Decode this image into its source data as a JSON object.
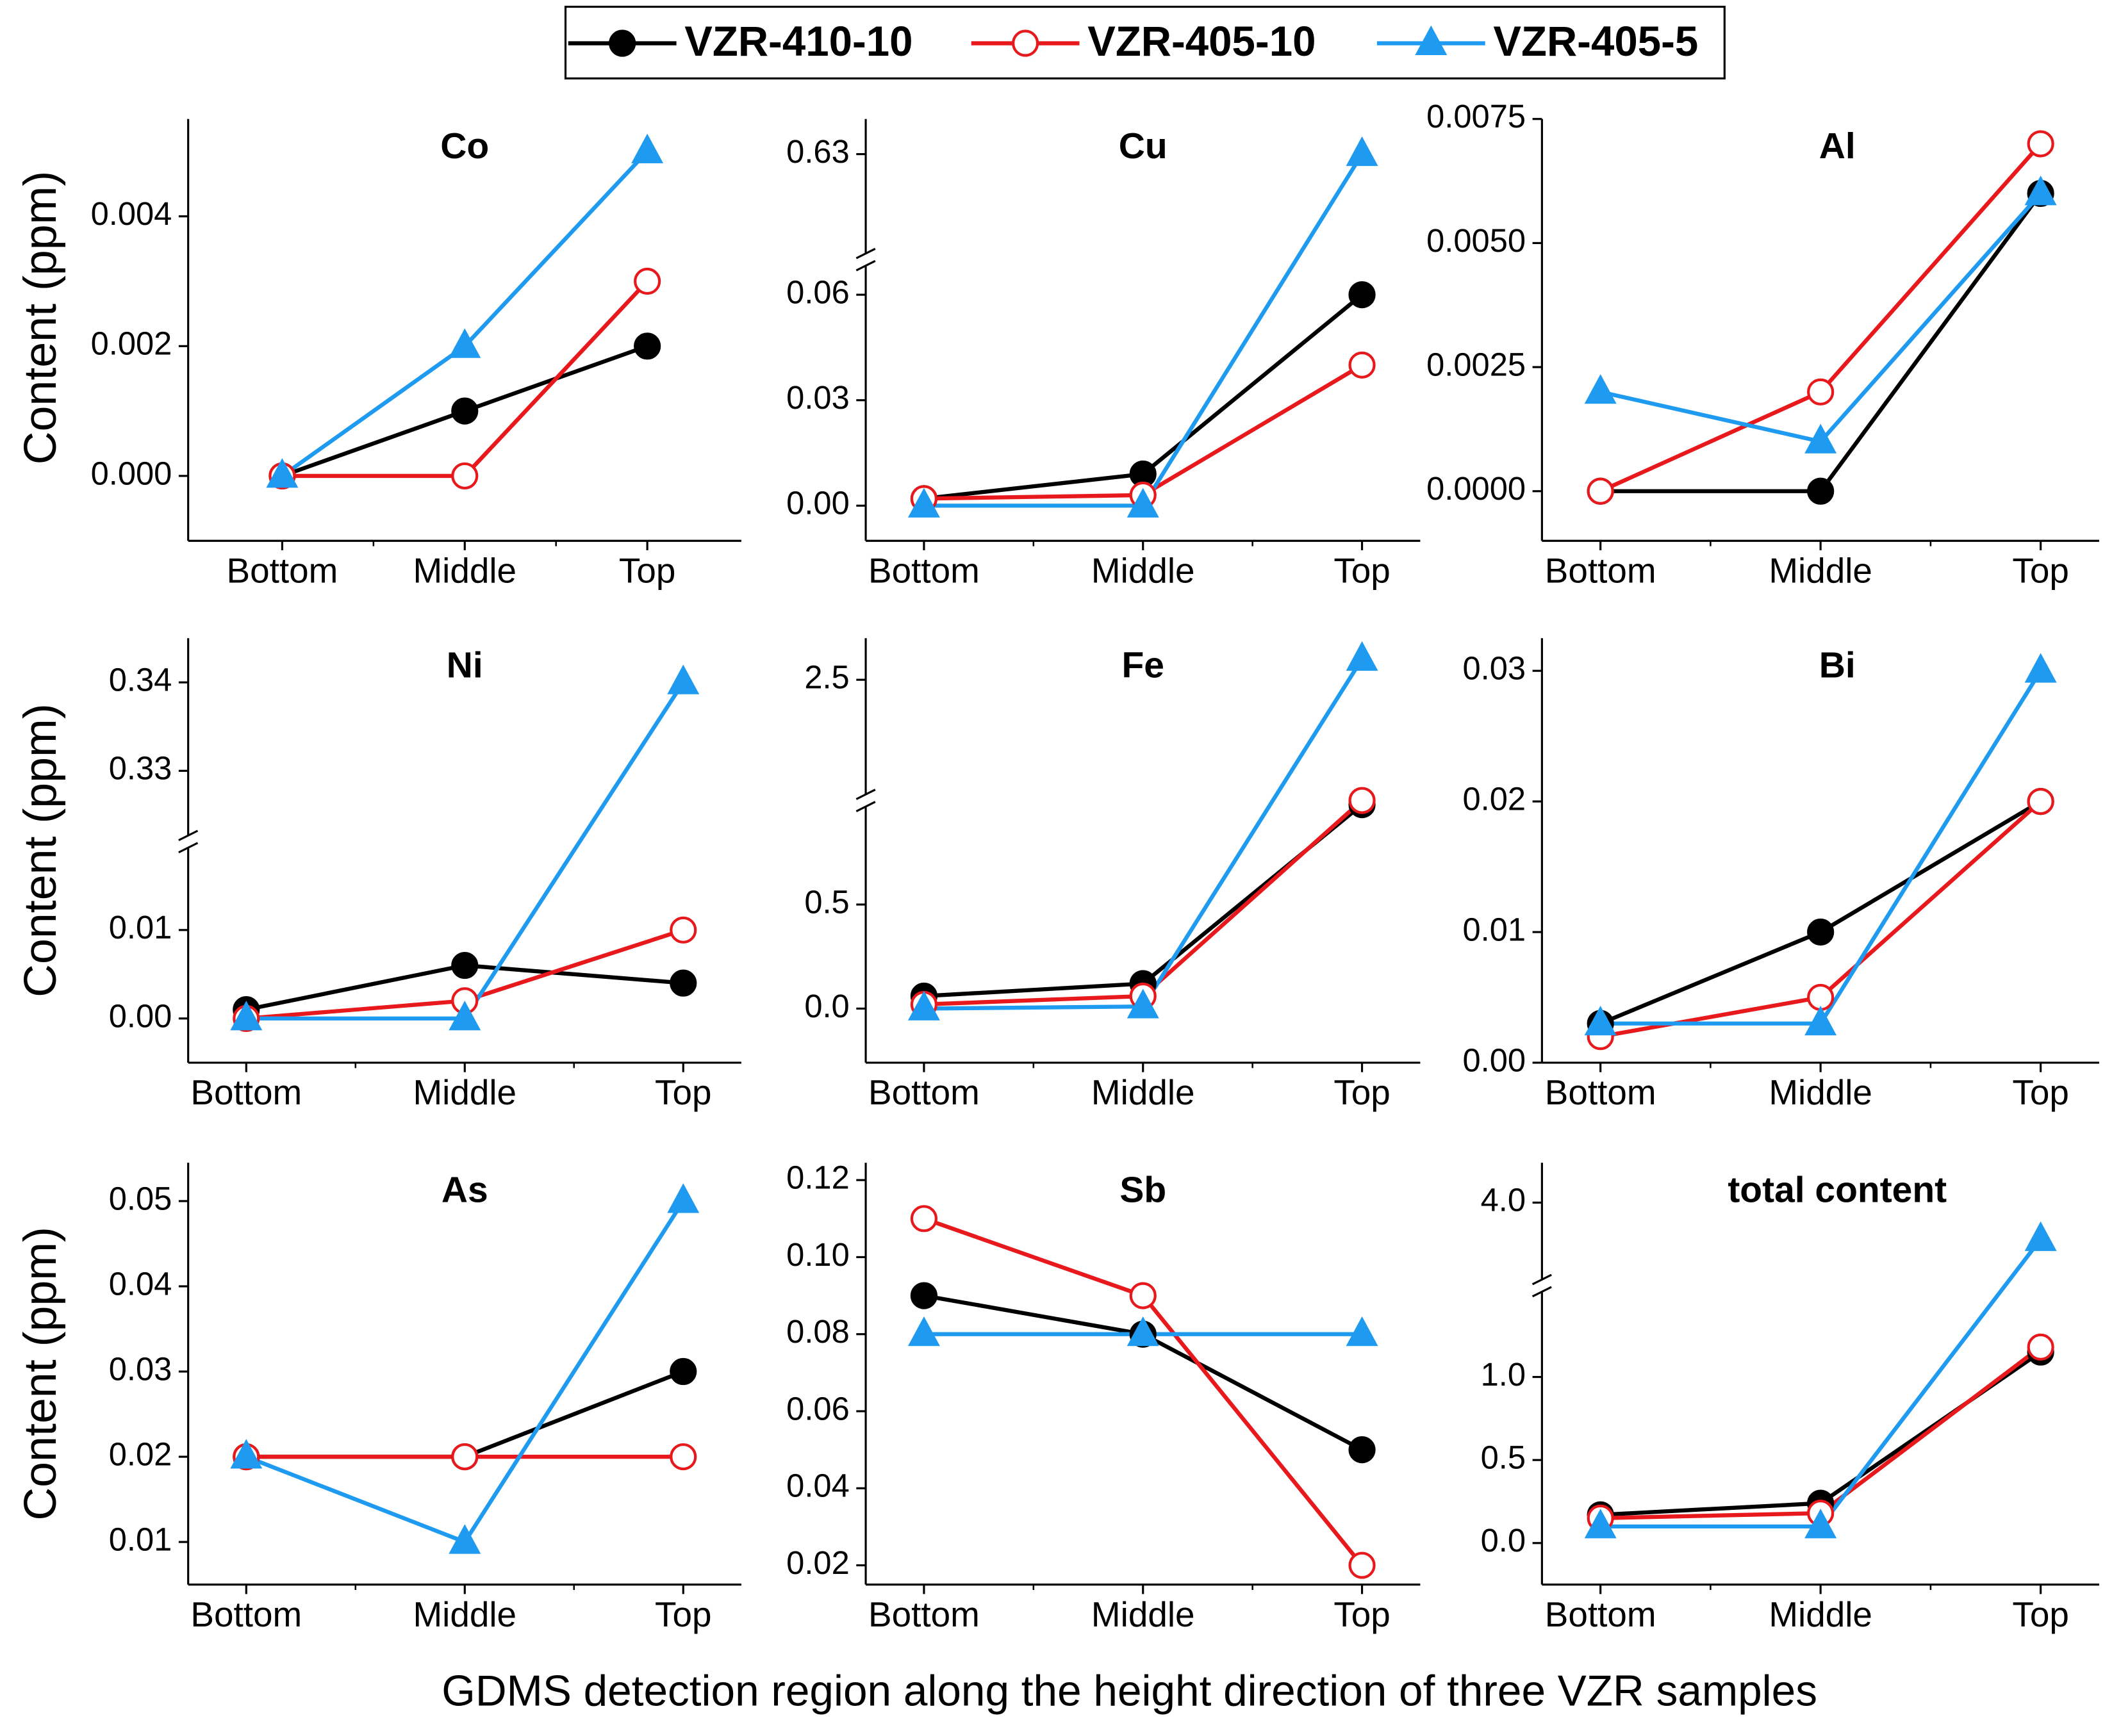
{
  "legend": [
    {
      "name": "VZR-410-10",
      "color": "#000000",
      "marker": "filled-circle"
    },
    {
      "name": "VZR-405-10",
      "color": "#e8191c",
      "marker": "open-circle"
    },
    {
      "name": "VZR-405-5",
      "color": "#1e9bf0",
      "marker": "triangle"
    }
  ],
  "ylabel": "Content (ppm)",
  "xlabel": "GDMS detection region along the height direction of three VZR samples",
  "chart_data": [
    {
      "type": "line",
      "title": "Co",
      "categories": [
        "Bottom",
        "Middle",
        "Top"
      ],
      "ylim": [
        -0.001,
        0.0055
      ],
      "yticks": [
        {
          "value": 0,
          "label": "0.000"
        },
        {
          "value": 0.002,
          "label": "0.002"
        },
        {
          "value": 0.004,
          "label": "0.004"
        }
      ],
      "series": [
        {
          "values": [
            0,
            0.001,
            0.002
          ]
        },
        {
          "values": [
            0,
            0,
            0.003
          ]
        },
        {
          "values": [
            0,
            0.002,
            0.005
          ]
        }
      ]
    },
    {
      "type": "line",
      "title": "Cu",
      "categories": [
        "Bottom",
        "Middle",
        "Top"
      ],
      "ylim": [
        -0.01,
        0.64
      ],
      "ybreak": [
        0.07,
        0.6
      ],
      "yticks": [
        {
          "value": 0,
          "label": "0.00"
        },
        0.03,
        0.06,
        0.63
      ],
      "series": [
        {
          "values": [
            0.002,
            0.009,
            0.06
          ]
        },
        {
          "values": [
            0.002,
            0.003,
            0.04
          ]
        },
        {
          "values": [
            0,
            0,
            0.63
          ]
        }
      ]
    },
    {
      "type": "line",
      "title": "Al",
      "categories": [
        "Bottom",
        "Middle",
        "Top"
      ],
      "ylim": [
        -0.001,
        0.0075
      ],
      "yticks": [
        {
          "value": 0,
          "label": "0.0000"
        },
        {
          "value": 0.0025,
          "label": "0.0025"
        },
        {
          "value": 0.005,
          "label": "0.0050"
        },
        {
          "value": 0.0075,
          "label": "0.0075"
        }
      ],
      "series": [
        {
          "values": [
            0,
            0,
            0.006
          ]
        },
        {
          "values": [
            0,
            0.002,
            0.007
          ]
        },
        {
          "values": [
            0.002,
            0.001,
            0.006
          ]
        }
      ]
    },
    {
      "type": "line",
      "title": "Ni",
      "categories": [
        "Bottom",
        "Middle",
        "Top"
      ],
      "ylim": [
        -0.005,
        0.345
      ],
      "ybreak": [
        0.02,
        0.322
      ],
      "yticks": [
        {
          "value": 0,
          "label": "0.00"
        },
        0.01,
        0.33,
        0.34
      ],
      "series": [
        {
          "values": [
            0.001,
            0.006,
            0.004
          ]
        },
        {
          "values": [
            0,
            0.002,
            0.01
          ]
        },
        {
          "values": [
            0,
            0,
            0.34
          ]
        }
      ]
    },
    {
      "type": "line",
      "title": "Fe",
      "categories": [
        "Bottom",
        "Middle",
        "Top"
      ],
      "ylim": [
        -0.26,
        2.7
      ],
      "ybreak": [
        1.0,
        1.92
      ],
      "yticks": [
        {
          "value": 0,
          "label": "0.0"
        },
        0.5,
        2.5
      ],
      "series": [
        {
          "values": [
            0.06,
            0.12,
            0.98
          ]
        },
        {
          "values": [
            0.02,
            0.06,
            1.0
          ]
        },
        {
          "values": [
            0,
            0.01,
            2.6
          ]
        }
      ]
    },
    {
      "type": "line",
      "title": "Bi",
      "categories": [
        "Bottom",
        "Middle",
        "Top"
      ],
      "ylim": [
        0,
        0.0325
      ],
      "yticks": [
        {
          "value": 0,
          "label": "0.00"
        },
        0.01,
        0.02,
        0.03
      ],
      "series": [
        {
          "values": [
            0.003,
            0.01,
            0.02
          ]
        },
        {
          "values": [
            0.002,
            0.005,
            0.02
          ]
        },
        {
          "values": [
            0.003,
            0.003,
            0.03
          ]
        }
      ]
    },
    {
      "type": "line",
      "title": "As",
      "categories": [
        "Bottom",
        "Middle",
        "Top"
      ],
      "ylim": [
        0.005,
        0.0545
      ],
      "yticks": [
        0.01,
        0.02,
        0.03,
        0.04,
        0.05
      ],
      "series": [
        {
          "values": [
            0.02,
            0.02,
            0.03
          ]
        },
        {
          "values": [
            0.02,
            0.02,
            0.02
          ]
        },
        {
          "values": [
            0.02,
            0.01,
            0.05
          ]
        }
      ]
    },
    {
      "type": "line",
      "title": "Sb",
      "categories": [
        "Bottom",
        "Middle",
        "Top"
      ],
      "ylim": [
        0.015,
        0.1245
      ],
      "yticks": [
        0.02,
        0.04,
        0.06,
        0.08,
        {
          "value": 0.1,
          "label": "0.10"
        },
        0.12
      ],
      "series": [
        {
          "values": [
            0.09,
            0.08,
            0.05
          ]
        },
        {
          "values": [
            0.11,
            0.09,
            0.02
          ]
        },
        {
          "values": [
            0.08,
            0.08,
            0.08
          ]
        }
      ]
    },
    {
      "type": "line",
      "title": "total content",
      "categories": [
        "Bottom",
        "Middle",
        "Top"
      ],
      "ylim": [
        -0.25,
        4.24
      ],
      "ybreak": [
        1.55,
        3.5
      ],
      "yticks": [
        {
          "value": 0,
          "label": "0.0"
        },
        0.5,
        {
          "value": 1,
          "label": "1.0"
        },
        {
          "value": 4,
          "label": "4.0"
        }
      ],
      "series": [
        {
          "values": [
            0.17,
            0.24,
            1.15
          ]
        },
        {
          "values": [
            0.15,
            0.18,
            1.18
          ]
        },
        {
          "values": [
            0.1,
            0.1,
            3.78
          ]
        }
      ]
    }
  ]
}
